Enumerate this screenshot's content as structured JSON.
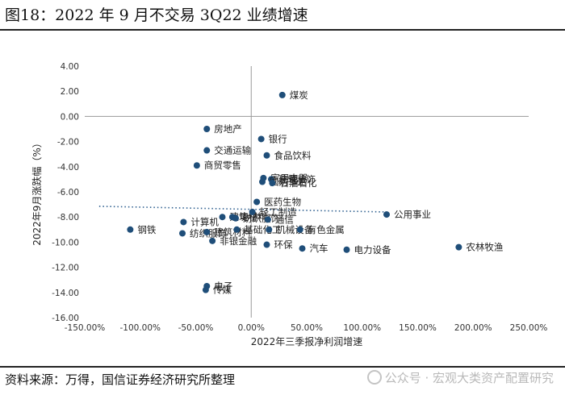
{
  "title": "图18：2022 年 9 月不交易 3Q22 业绩增速",
  "source": "资料来源：万得，国信证券经济研究所整理",
  "watermark": "公众号 · 宏观大类资产配置研究",
  "colors": {
    "point": "#1f4e79",
    "trend": "#2e5f8f",
    "axis": "#9a9a9a"
  },
  "chart_data": {
    "type": "scatter",
    "xlabel": "2022年三季报净利润增速",
    "ylabel": "2022年9月涨跌幅（%）",
    "xlim": [
      -150,
      250
    ],
    "ylim": [
      -16,
      4
    ],
    "x_ticks": [
      "-150.00%",
      "-100.00%",
      "-50.00%",
      "0.00%",
      "50.00%",
      "100.00%",
      "150.00%",
      "200.00%",
      "250.00%"
    ],
    "y_ticks": [
      "4.00",
      "2.00",
      "0.00",
      "-2.00",
      "-4.00",
      "-6.00",
      "-8.00",
      "-10.00",
      "-12.00",
      "-14.00",
      "-16.00"
    ],
    "trendline": {
      "style": "dotted",
      "x": [
        -137,
        122
      ],
      "y": [
        -7.15,
        -7.6
      ]
    },
    "points": [
      {
        "label": "煤炭",
        "x": 28,
        "y": 1.7
      },
      {
        "label": "房地产",
        "x": -40,
        "y": -1.0
      },
      {
        "label": "银行",
        "x": 9,
        "y": -1.8
      },
      {
        "label": "交通运输",
        "x": -40,
        "y": -2.7
      },
      {
        "label": "食品饮料",
        "x": 14,
        "y": -3.1
      },
      {
        "label": "商贸零售",
        "x": -49,
        "y": -3.9
      },
      {
        "label": "家用电器",
        "x": 11,
        "y": -4.9
      },
      {
        "label": "建筑装饰",
        "x": 18,
        "y": -5.0
      },
      {
        "label": "国防军工",
        "x": 10,
        "y": -5.2
      },
      {
        "label": "石油石化",
        "x": 19,
        "y": -5.3
      },
      {
        "label": "医药生物",
        "x": 5,
        "y": -6.8
      },
      {
        "label": "公用事业",
        "x": 122,
        "y": -7.8
      },
      {
        "label": "建筑材料",
        "x": -26,
        "y": -8.0
      },
      {
        "label": "电子",
        "x": -17,
        "y": -8.0
      },
      {
        "label": "轻工制造",
        "x": 1,
        "y": -7.6
      },
      {
        "label": "纺织服饰",
        "x": -14,
        "y": -8.1
      },
      {
        "label": "通信",
        "x": 15,
        "y": -8.2
      },
      {
        "label": "计算机",
        "x": -61,
        "y": -8.4
      },
      {
        "label": "钢铁",
        "x": -109,
        "y": -9.0
      },
      {
        "label": "纺织服饰",
        "x": -62,
        "y": -9.3
      },
      {
        "label": "建筑材料",
        "x": -40,
        "y": -9.2
      },
      {
        "label": "基础化工",
        "x": -13,
        "y": -9.0
      },
      {
        "label": "机械设备",
        "x": 16,
        "y": -9.0
      },
      {
        "label": "有色金属",
        "x": 44,
        "y": -9.0
      },
      {
        "label": "非银金融",
        "x": -35,
        "y": -9.9
      },
      {
        "label": "环保",
        "x": 14,
        "y": -10.2
      },
      {
        "label": "汽车",
        "x": 46,
        "y": -10.5
      },
      {
        "label": "电力设备",
        "x": 86,
        "y": -10.6
      },
      {
        "label": "农林牧渔",
        "x": 187,
        "y": -10.4
      },
      {
        "label": "电子",
        "x": -40,
        "y": -13.5
      },
      {
        "label": "传媒",
        "x": -41,
        "y": -13.8
      }
    ]
  }
}
